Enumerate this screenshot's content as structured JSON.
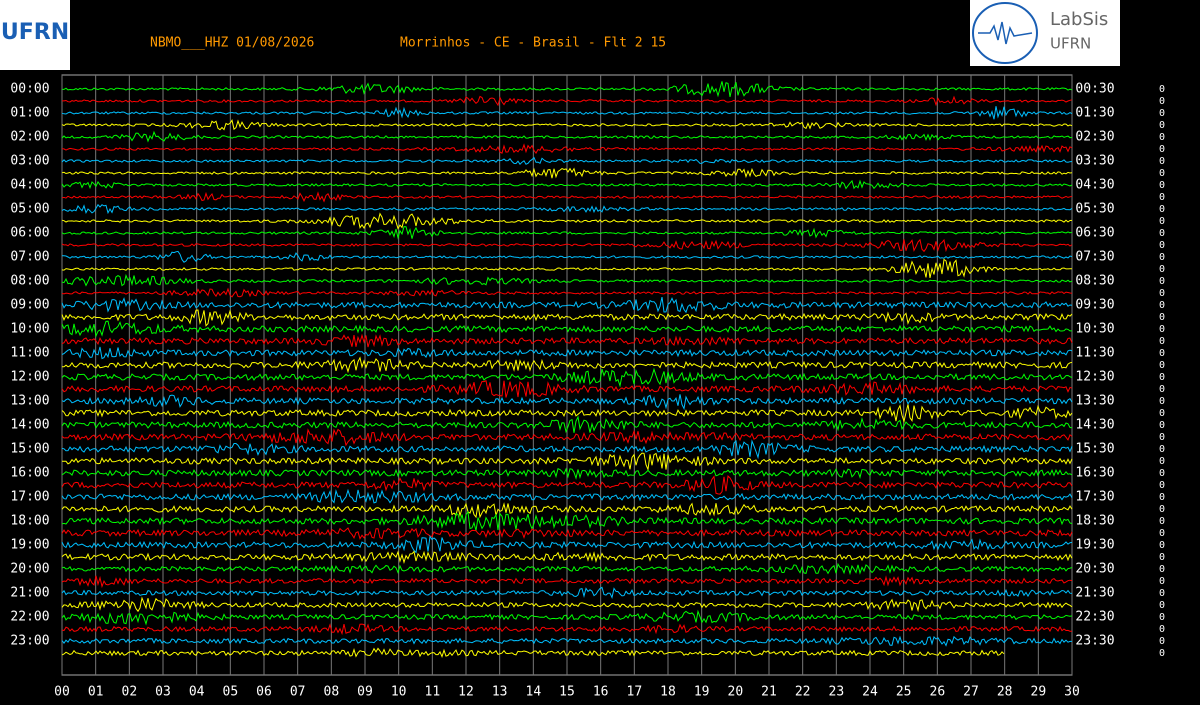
{
  "header": {
    "station": "NBMO___HHZ 01/08/2026",
    "location": "Morrinhos - CE - Brasil - Flt 2 15",
    "logo_left": "UFRN",
    "logo_right": "LabSis",
    "logo_right_sub": "UFRN"
  },
  "chart_data": {
    "type": "helicorder",
    "left_labels": [
      "00:00",
      "01:00",
      "02:00",
      "03:00",
      "04:00",
      "05:00",
      "06:00",
      "07:00",
      "08:00",
      "09:00",
      "10:00",
      "11:00",
      "12:00",
      "13:00",
      "14:00",
      "15:00",
      "16:00",
      "17:00",
      "18:00",
      "19:00",
      "20:00",
      "21:00",
      "22:00",
      "23:00"
    ],
    "right_labels": [
      "00:30",
      "01:30",
      "02:30",
      "03:30",
      "04:30",
      "05:30",
      "06:30",
      "07:30",
      "08:30",
      "09:30",
      "10:30",
      "11:30",
      "12:30",
      "13:30",
      "14:30",
      "15:30",
      "16:30",
      "17:30",
      "18:30",
      "19:30",
      "20:30",
      "21:30",
      "22:30",
      "23:30"
    ],
    "xlim": [
      0,
      30
    ],
    "xticks": [
      {
        "value": 0,
        "label": "00"
      },
      {
        "value": 1,
        "label": "01"
      },
      {
        "value": 2,
        "label": "02"
      },
      {
        "value": 3,
        "label": "03"
      },
      {
        "value": 4,
        "label": "04"
      },
      {
        "value": 5,
        "label": "05"
      },
      {
        "value": 6,
        "label": "06"
      },
      {
        "value": 7,
        "label": "07"
      },
      {
        "value": 8,
        "label": "08"
      },
      {
        "value": 9,
        "label": "09"
      },
      10,
      11,
      12,
      13,
      14,
      15,
      16,
      17,
      18,
      19,
      20,
      21,
      22,
      23,
      24,
      25,
      26,
      27,
      28,
      29,
      30
    ],
    "trace_colors": [
      "#00ff00",
      "#ff0000",
      "#00bfff",
      "#ffff00"
    ],
    "gain_labels": [
      0,
      0,
      0,
      0,
      0,
      0,
      0,
      0,
      0,
      0,
      0,
      0,
      0,
      0,
      0,
      0,
      0,
      0,
      0,
      0,
      0,
      0,
      0,
      0,
      0,
      0,
      0,
      0,
      0,
      0,
      0,
      0,
      0,
      0,
      0,
      0,
      0,
      0,
      0,
      0,
      0,
      0,
      0,
      0,
      0,
      0,
      0,
      0
    ]
  }
}
